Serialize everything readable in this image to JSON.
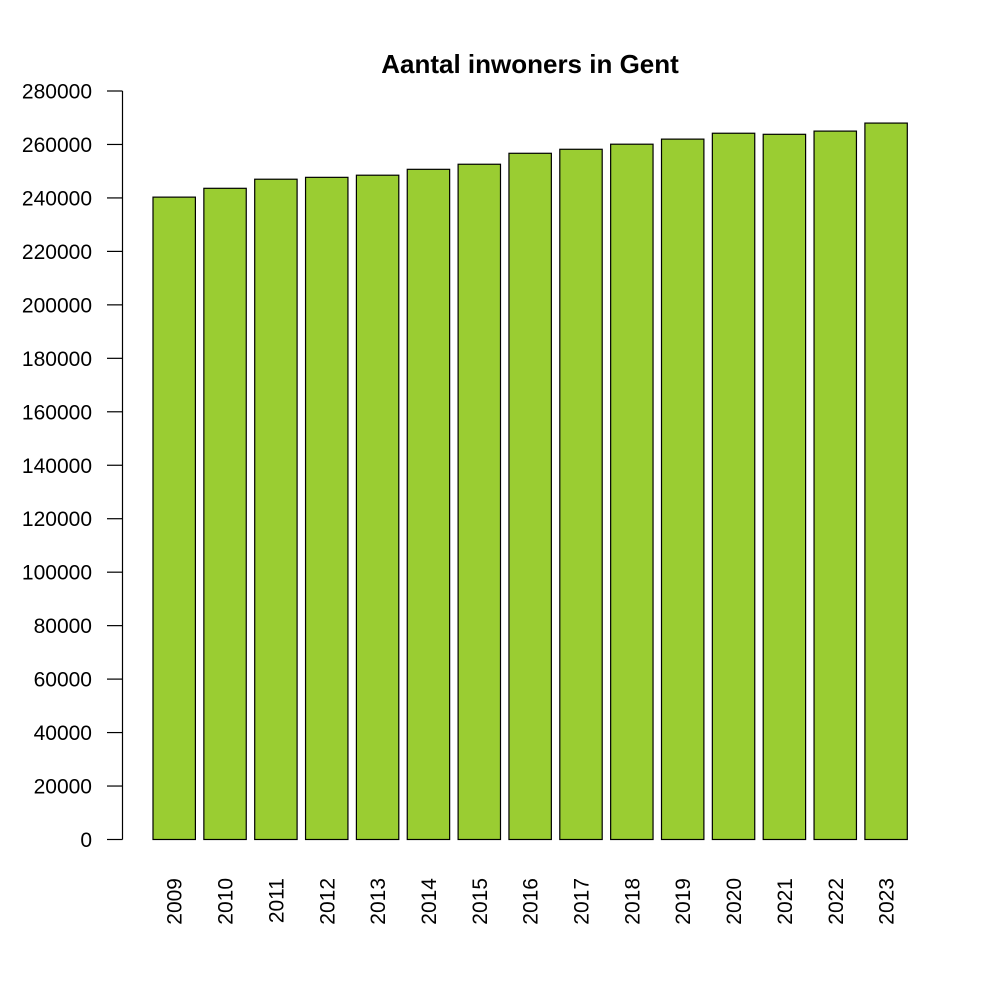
{
  "chart_data": {
    "type": "bar",
    "title": "Aantal inwoners in Gent",
    "xlabel": "",
    "ylabel": "",
    "categories": [
      "2009",
      "2010",
      "2011",
      "2012",
      "2013",
      "2014",
      "2015",
      "2016",
      "2017",
      "2018",
      "2019",
      "2020",
      "2021",
      "2022",
      "2023"
    ],
    "values": [
      240300,
      243600,
      247000,
      247700,
      248500,
      250700,
      252600,
      256700,
      258200,
      260100,
      262000,
      264200,
      263800,
      265000,
      268000
    ],
    "ylim": [
      0,
      280000
    ],
    "yticks": [
      "0",
      "20000",
      "40000",
      "60000",
      "80000",
      "100000",
      "120000",
      "140000",
      "160000",
      "180000",
      "200000",
      "220000",
      "240000",
      "260000",
      "280000"
    ],
    "grid": false,
    "legend": "none",
    "bar_color": "#9ACD32",
    "bar_border": "#000000"
  }
}
